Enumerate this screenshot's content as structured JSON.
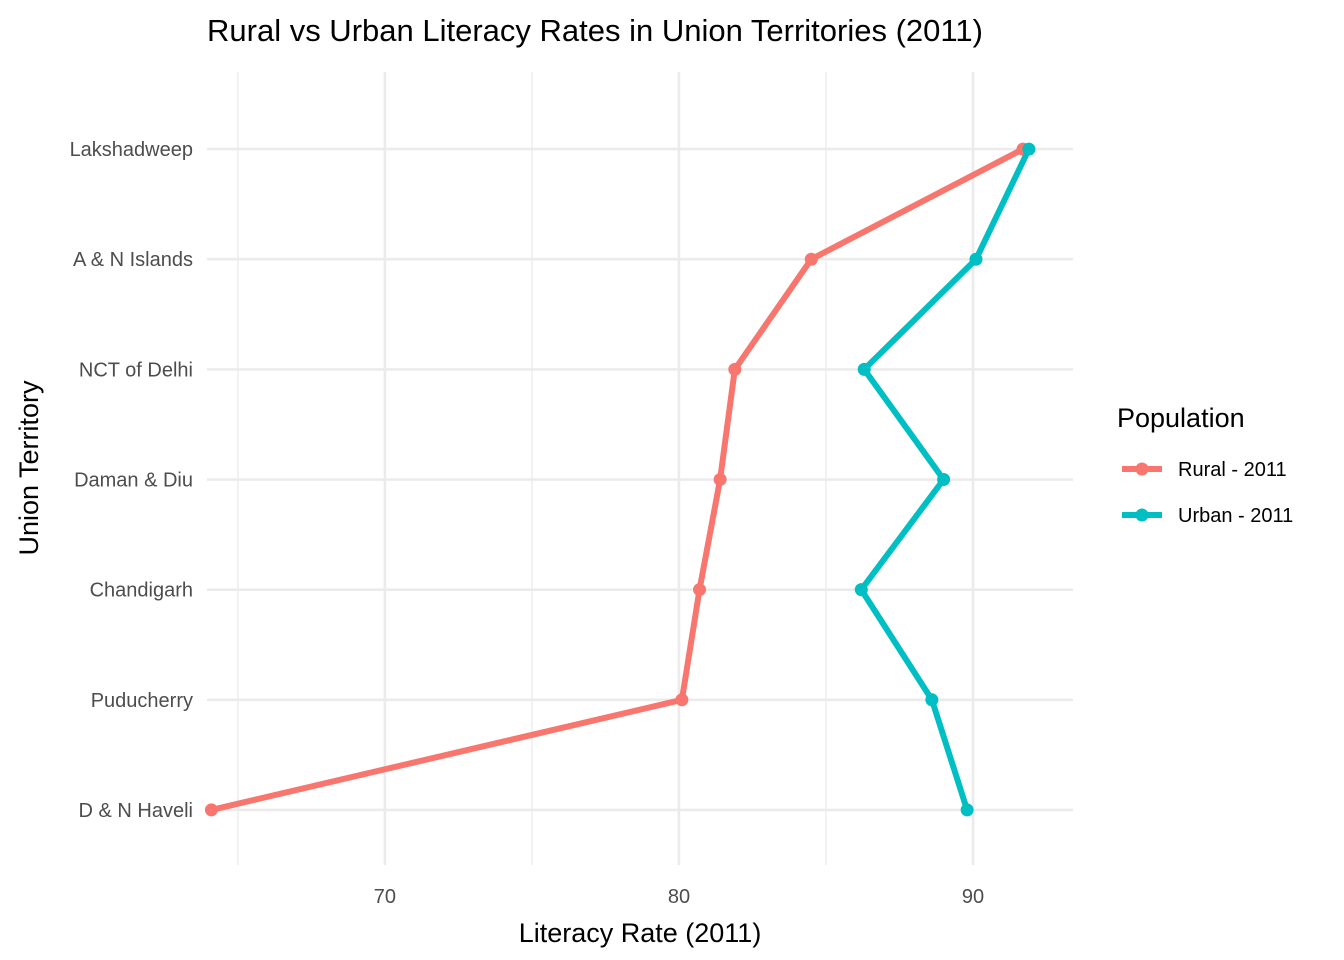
{
  "chart_data": {
    "type": "line",
    "title": "Rural vs Urban Literacy Rates in Union Territories (2011)",
    "xlabel": "Literacy Rate (2011)",
    "ylabel": "Union Territory",
    "categories": [
      "D & N Haveli",
      "Puducherry",
      "Chandigarh",
      "Daman & Diu",
      "NCT of Delhi",
      "A & N Islands",
      "Lakshadweep"
    ],
    "xlim": [
      63.95,
      93.4
    ],
    "x_ticks": [
      70,
      80,
      90
    ],
    "x_minor_ticks": [
      65,
      75,
      85
    ],
    "grid": true,
    "legend": {
      "title": "Population",
      "position": "right"
    },
    "series": [
      {
        "name": "Rural - 2011",
        "color": "#F8766D",
        "values": [
          64.1,
          80.1,
          80.7,
          81.4,
          81.9,
          84.5,
          91.7
        ]
      },
      {
        "name": "Urban - 2011",
        "color": "#00BFC4",
        "values": [
          89.8,
          88.6,
          86.2,
          89.0,
          86.3,
          90.1,
          91.9
        ]
      }
    ]
  }
}
